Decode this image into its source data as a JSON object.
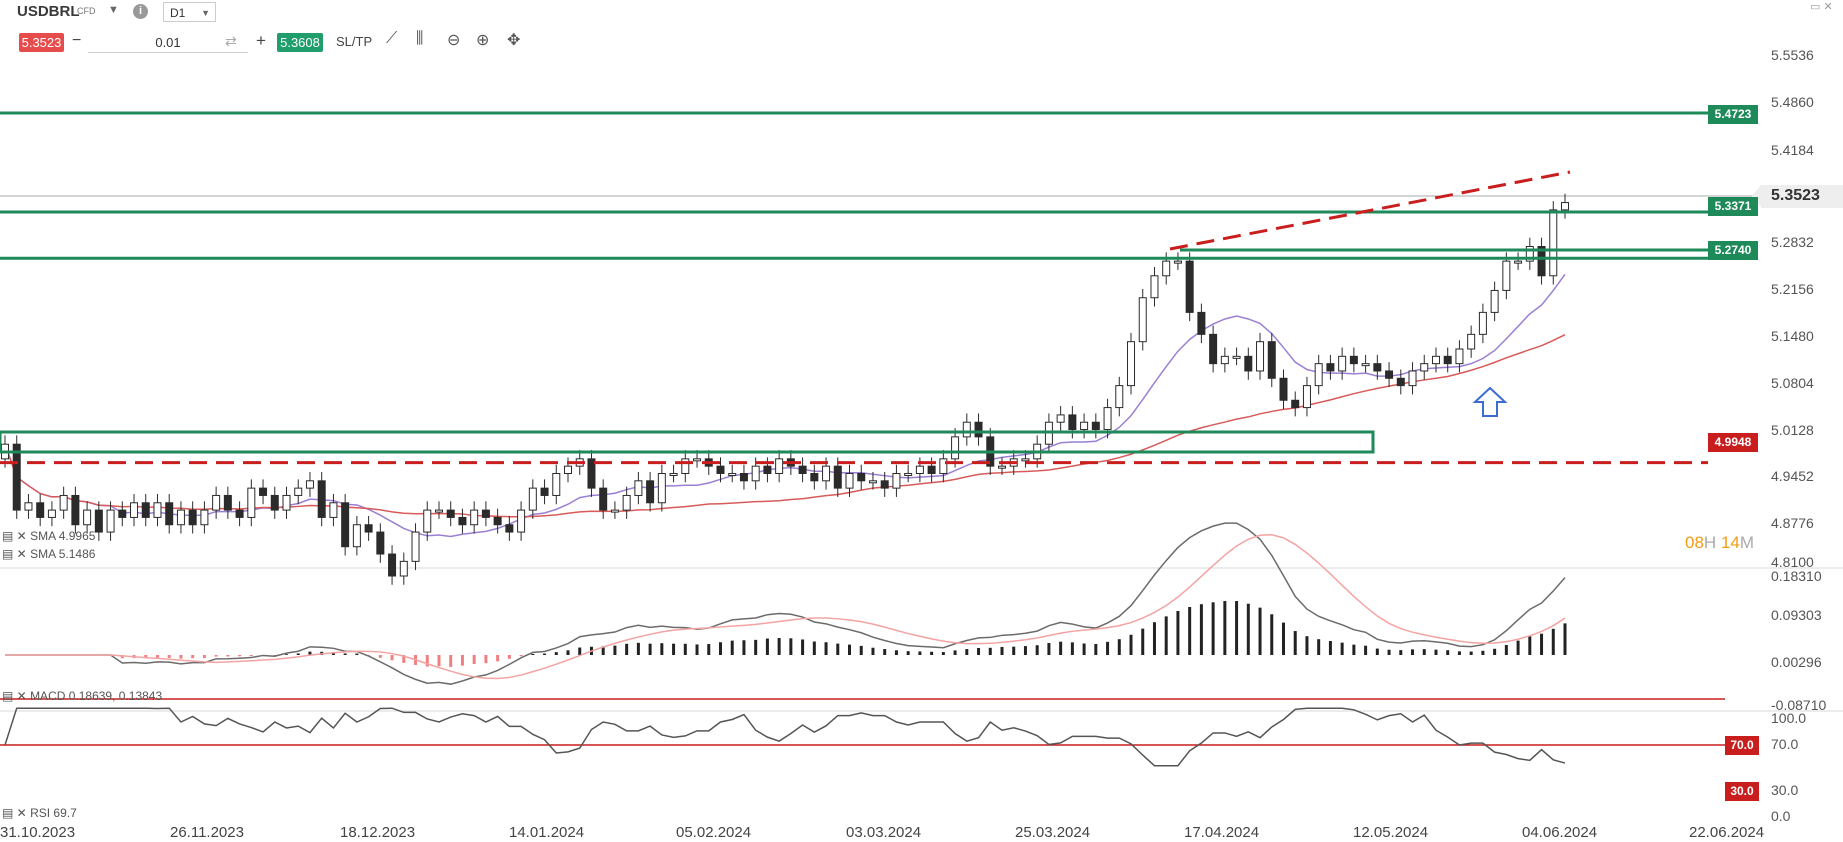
{
  "toolbar": {
    "symbol": "USDBRL",
    "symbol_type": "CFD",
    "timeframe": "D1",
    "sell_price": "5.3523",
    "quantity": "0.01",
    "buy_price": "5.3608",
    "sltp_label": "SL/TP"
  },
  "price_axis": {
    "ticks": [
      "5.5536",
      "5.4860",
      "5.4184",
      "5.3523",
      "5.2832",
      "5.2156",
      "5.1480",
      "5.0804",
      "5.0128",
      "4.9452",
      "4.8776",
      "4.8100"
    ],
    "current_price": "5.3523",
    "levels": [
      {
        "label": "5.4723",
        "value": 5.4723,
        "color": "#1e8a5a"
      },
      {
        "label": "5.3371",
        "value": 5.3371,
        "color": "#1e8a5a"
      },
      {
        "label": "5.2740",
        "value": 5.274,
        "color": "#1e8a5a"
      },
      {
        "label": "4.9948",
        "value": 4.9948,
        "color": "#c81e1e"
      }
    ]
  },
  "countdown": {
    "hours": "08",
    "h": "H",
    "minutes": "14",
    "m": "M"
  },
  "indicators": {
    "sma1": "SMA 4.9965",
    "sma2": "SMA 5.1486",
    "macd": "MACD 0.18639, 0.13843",
    "rsi": "RSI 69.7"
  },
  "macd_axis": [
    "0.18310",
    "0.09303",
    "0.00296",
    "-0.08710"
  ],
  "rsi_axis": [
    "100.0",
    "70.0",
    "30.0",
    "0.0"
  ],
  "rsi_levels": [
    "70.0",
    "30.0"
  ],
  "date_axis": [
    "31.10.2023",
    "26.11.2023",
    "18.12.2023",
    "14.01.2024",
    "05.02.2024",
    "03.03.2024",
    "25.03.2024",
    "17.04.2024",
    "12.05.2024",
    "04.06.2024",
    "22.06.2024"
  ],
  "colors": {
    "up": "#ffffff",
    "down": "#2b2b2b",
    "support_green": "#1e8a5a",
    "resistance_red": "#c81e1e",
    "sma_fast": "#9b7fd4",
    "sma_slow": "#d85a5a",
    "macd_line": "#6b6b6b",
    "signal_line": "#f4a3a3",
    "hist_pos": "#222222",
    "hist_neg": "#f08080"
  },
  "chart_data": {
    "type": "candlestick",
    "symbol": "USDBRL",
    "timeframe": "D1",
    "ylim": [
      4.81,
      5.5536
    ],
    "date_range": [
      "31.10.2023",
      "22.06.2024"
    ],
    "horizontal_levels": [
      5.4723,
      5.3371,
      5.274,
      4.9948
    ],
    "current_price": 5.3523,
    "smas": [
      4.9965,
      5.1486
    ],
    "macd": [
      0.18639,
      0.13843
    ],
    "rsi": 69.7,
    "rsi_levels": [
      70,
      30
    ]
  }
}
